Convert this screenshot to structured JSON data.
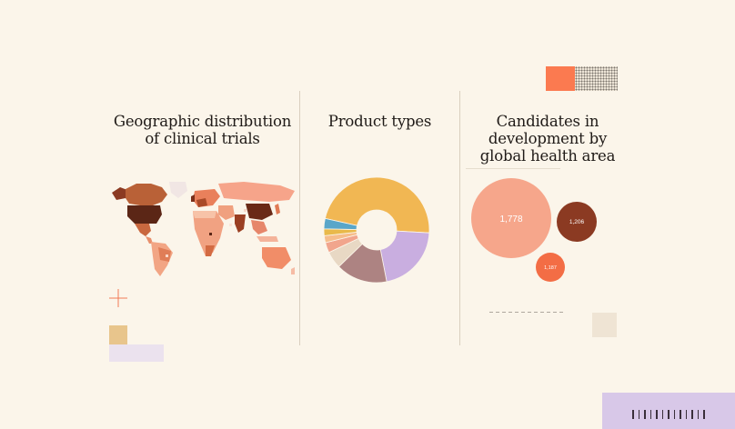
{
  "panels": {
    "geo": {
      "title_line1": "Geographic distribution",
      "title_line2": "of clinical trials"
    },
    "products": {
      "title": "Product types"
    },
    "candidates": {
      "title_line1": "Candidates in",
      "title_line2": "development by",
      "title_line3": "global health area"
    }
  },
  "bubbles": [
    {
      "label": "1,778",
      "value": 1778,
      "color": "#f6a68b"
    },
    {
      "label": "1,206",
      "value": 1206,
      "color": "#8b3a22"
    },
    {
      "label": "1,187",
      "value": 1187,
      "color": "#f36d45"
    }
  ],
  "chart_data": {
    "type": "pie",
    "title": "Product types",
    "donut": true,
    "values": [
      45,
      20,
      15,
      5,
      3,
      2,
      2,
      3
    ],
    "colors": [
      "#f1b753",
      "#c9aee0",
      "#ad8382",
      "#e8d8c4",
      "#f1a58d",
      "#f6bd8b",
      "#e9b94a",
      "#5aa6c9"
    ]
  },
  "colors": {
    "background": "#fbf5ea",
    "accent_orange": "#fb7a50",
    "accent_lavender": "#d8c8e8",
    "accent_gold": "#e8c58c"
  }
}
